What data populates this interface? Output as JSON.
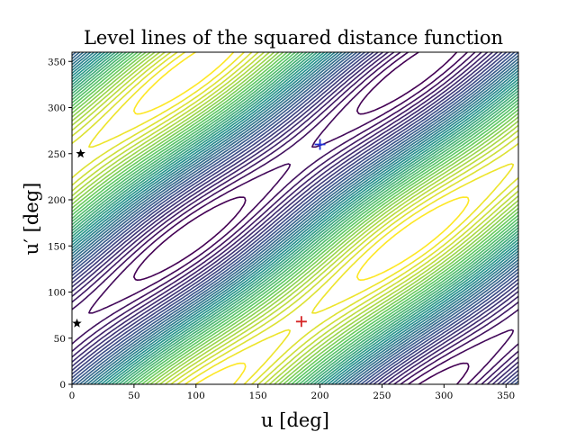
{
  "chart_data": {
    "type": "contour",
    "title": "Level lines of the squared distance function",
    "xlabel": "u [deg]",
    "ylabel": "u′ [deg]",
    "xlim": [
      0,
      360
    ],
    "ylim": [
      0,
      360
    ],
    "xticks": [
      0,
      50,
      100,
      150,
      200,
      250,
      300,
      350
    ],
    "yticks": [
      0,
      50,
      100,
      150,
      200,
      250,
      300,
      350
    ],
    "colormap": "viridis",
    "colormap_stops": [
      "#440154",
      "#3b528b",
      "#21918c",
      "#5ec962",
      "#fde725"
    ],
    "contour_levels_count": 40,
    "surface_center": {
      "u": 185,
      "u_prime": 68
    },
    "markers": [
      {
        "type": "plus",
        "u": 185,
        "u_prime": 68,
        "color": "#d62728"
      },
      {
        "type": "plus",
        "u": 200,
        "u_prime": 260,
        "color": "#1f2fd6"
      },
      {
        "type": "star",
        "u": 7,
        "u_prime": 250,
        "color": "#000000"
      },
      {
        "type": "star",
        "u": 4,
        "u_prime": 66,
        "color": "#000000"
      }
    ]
  }
}
